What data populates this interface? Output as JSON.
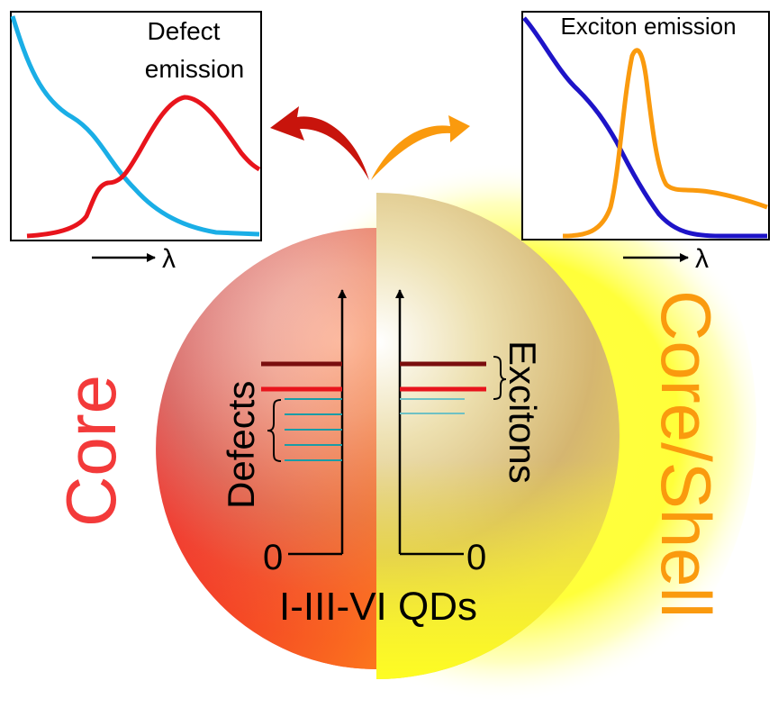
{
  "title": "I-III-VI QDs",
  "left_label": "Core",
  "right_label": "Core/Shell",
  "defects_label": "Defects",
  "excitons_label": "Excitons",
  "zero_left": "0",
  "zero_right": "0",
  "wavelength_symbol": "λ",
  "left_inset": {
    "title_line1": "Defect",
    "title_line2": "emission",
    "absorption_color": "#1AAEE6",
    "emission_color": "#E8141C"
  },
  "right_inset": {
    "title": "Exciton emission",
    "absorption_color": "#1E14C8",
    "emission_color": "#FA9A0E"
  },
  "colors": {
    "core": "#F33A3A",
    "shell": "#FA9A0E",
    "level_dark": "#7A0E0E",
    "level_red": "#E8141C",
    "level_teal": "#1A9CA6"
  }
}
